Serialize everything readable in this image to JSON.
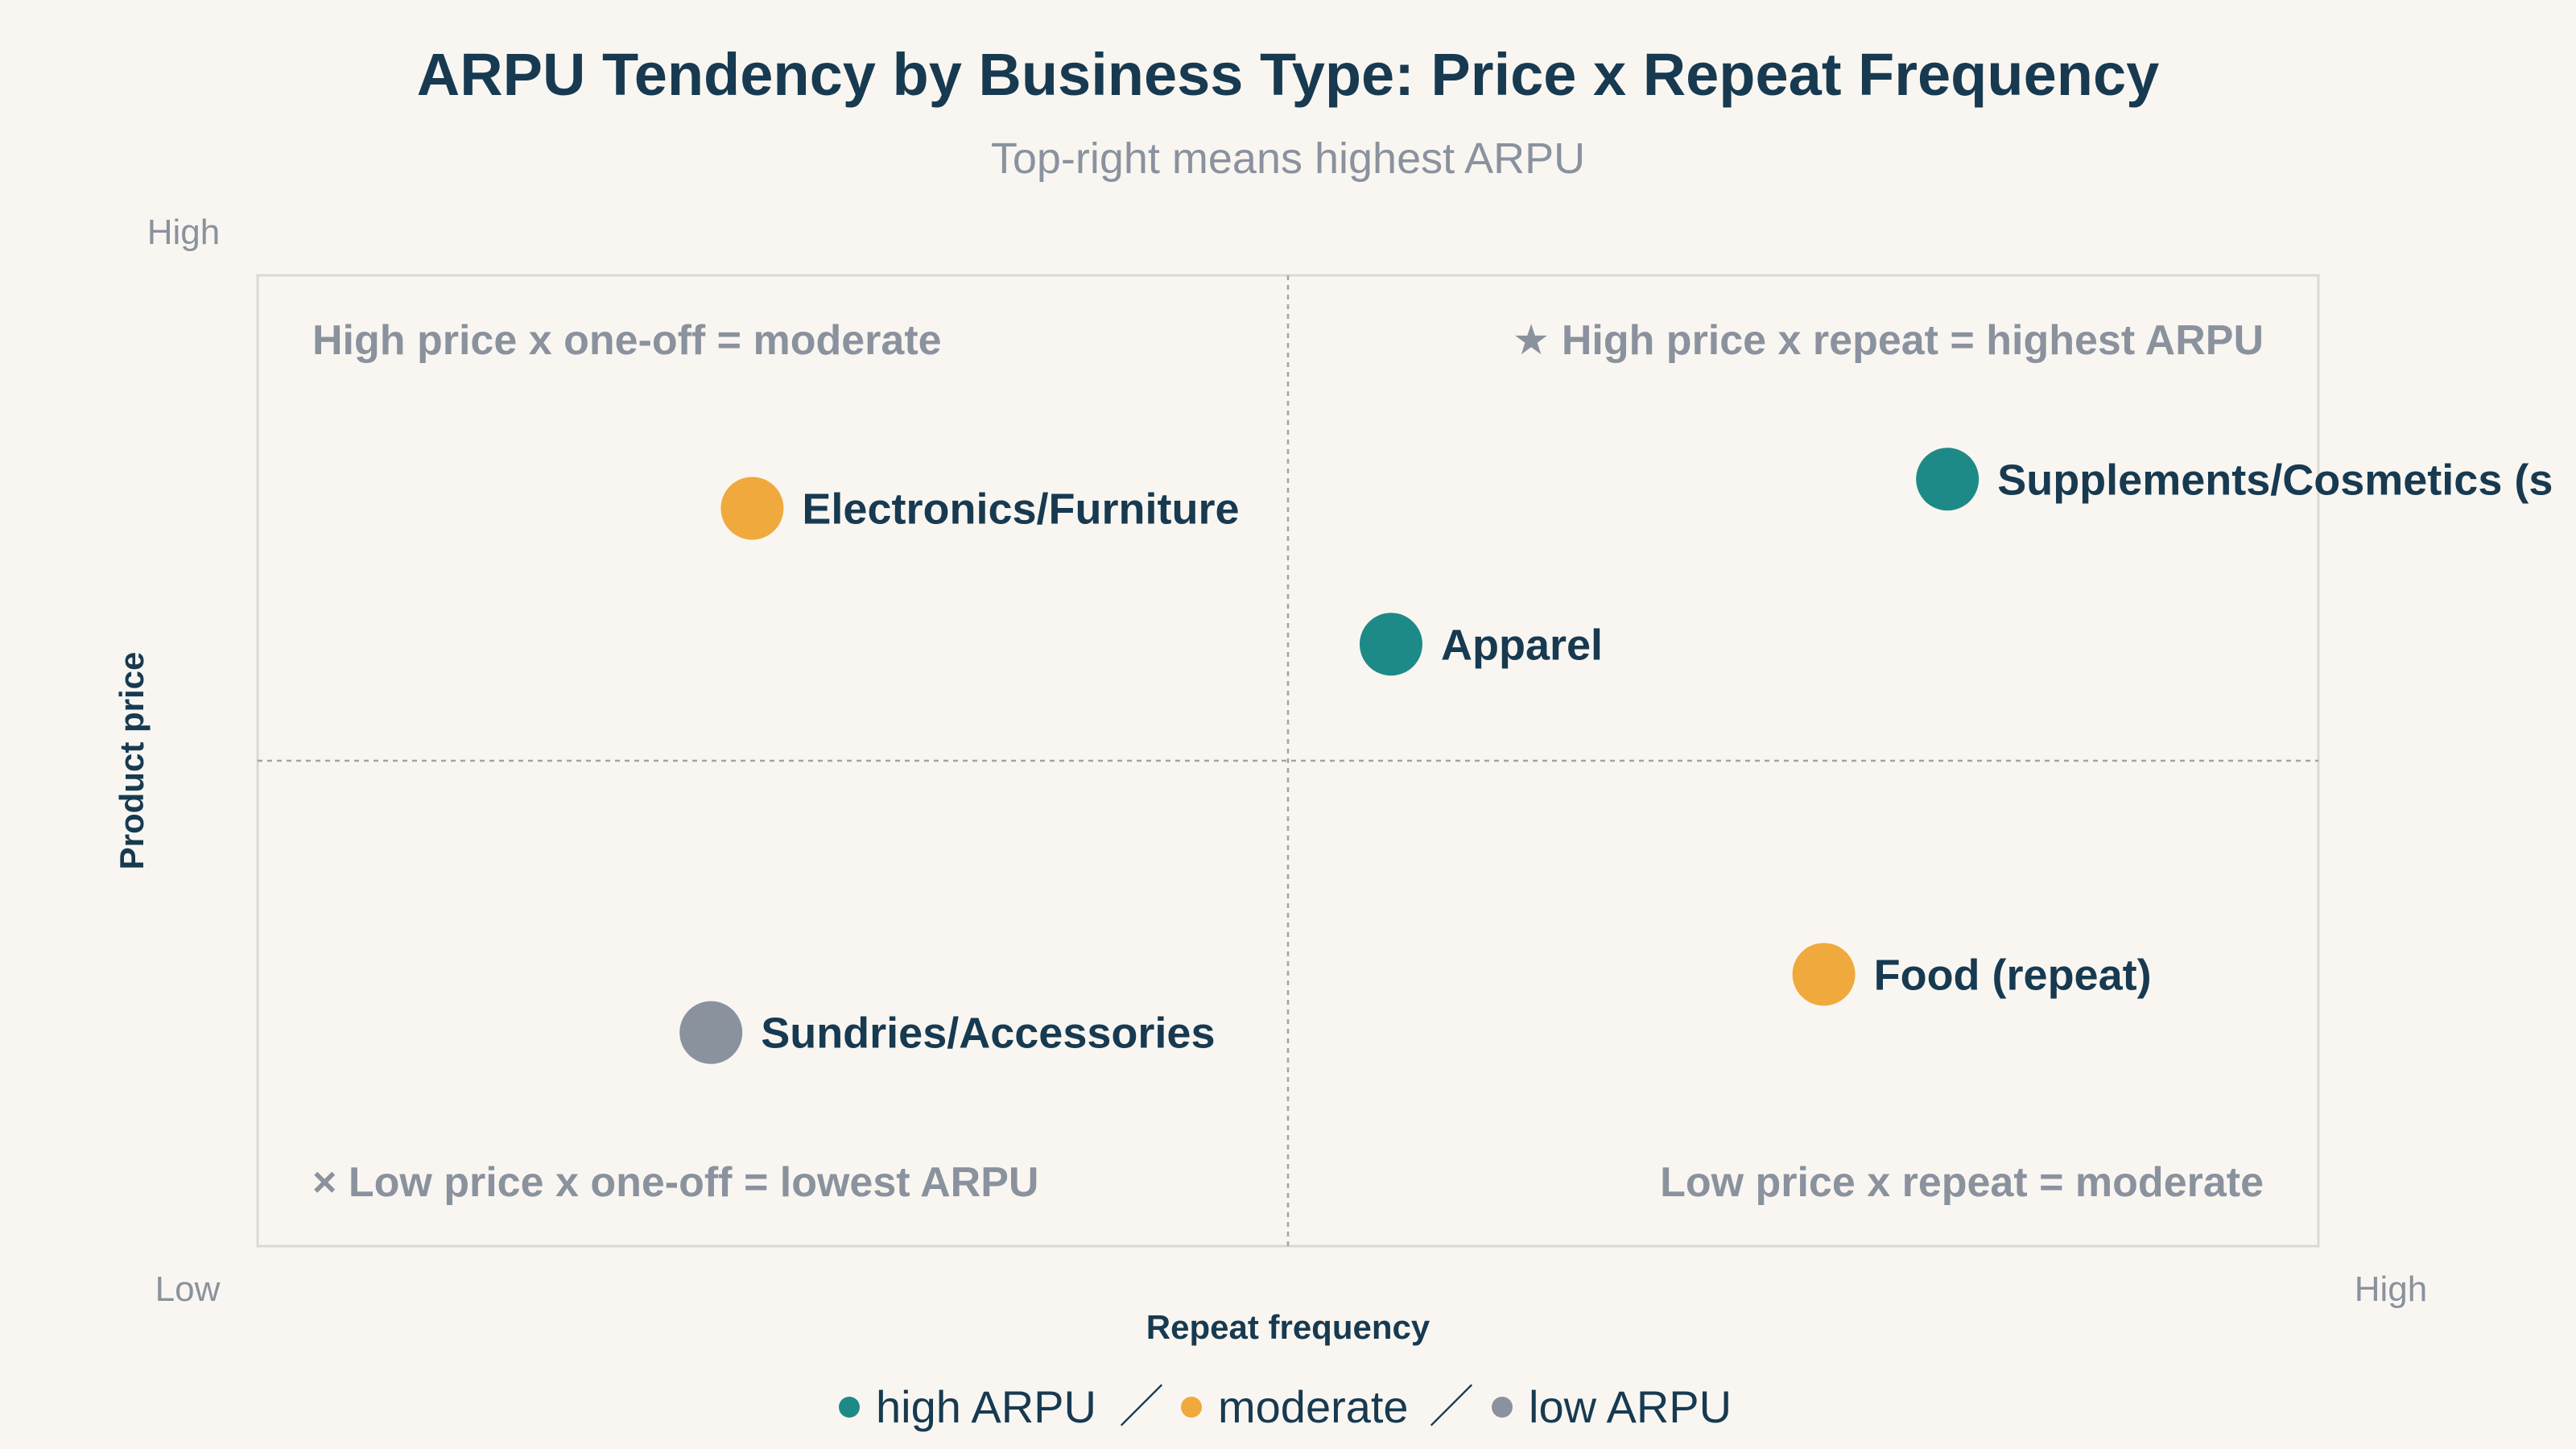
{
  "chart_data": {
    "type": "scatter",
    "title": "ARPU Tendency by Business Type: Price x Repeat Frequency",
    "subtitle": "Top-right means highest ARPU",
    "xlabel": "Repeat frequency",
    "ylabel": "Product price",
    "x_low_label": "Low",
    "x_high_label": "High",
    "y_low_label": "Low",
    "y_high_label": "High",
    "xlim": [
      0,
      10
    ],
    "ylim": [
      0,
      10
    ],
    "quadrant_divider": {
      "x": 5,
      "y": 5
    },
    "grid": false,
    "quadrant_labels": {
      "top_left": "High price x one-off = moderate",
      "top_right": "★ High price x repeat = highest ARPU",
      "bottom_left": "× Low price x one-off = lowest ARPU",
      "bottom_right": "Low price x repeat = moderate"
    },
    "points": [
      {
        "label": "Electronics/Furniture",
        "x": 2.4,
        "y": 7.6,
        "category": "moderate"
      },
      {
        "label": "Apparel",
        "x": 5.5,
        "y": 6.2,
        "category": "high"
      },
      {
        "label": "Supplements/Cosmetics (s",
        "x": 8.2,
        "y": 7.9,
        "category": "high"
      },
      {
        "label": "Food (repeat)",
        "x": 7.6,
        "y": 2.8,
        "category": "moderate"
      },
      {
        "label": "Sundries/Accessories",
        "x": 2.2,
        "y": 2.2,
        "category": "low"
      }
    ],
    "legend": {
      "placement": "bottom-center",
      "separator": "／",
      "items": [
        {
          "key": "high",
          "label": "high ARPU",
          "color": "#1e8a87"
        },
        {
          "key": "moderate",
          "label": "moderate",
          "color": "#f0a93c"
        },
        {
          "key": "low",
          "label": "low ARPU",
          "color": "#8a929e"
        }
      ]
    }
  }
}
